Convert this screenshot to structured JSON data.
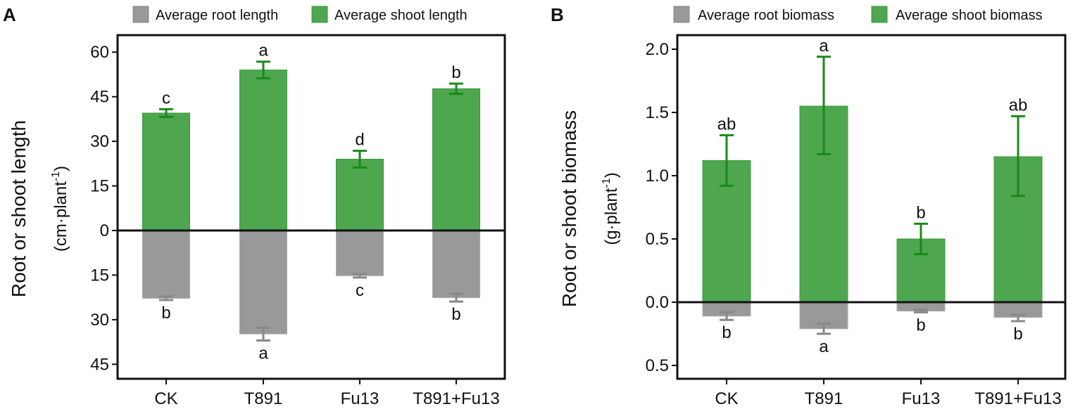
{
  "colors": {
    "root": "#999999",
    "root_err": "#888888",
    "shoot": "#4ea64e",
    "shoot_edge": "#3c9a3c",
    "shoot_err": "#1a8a1a",
    "axis": "#111111"
  },
  "chart_data": [
    {
      "panel_label": "A",
      "type": "bar",
      "title": "",
      "categories": [
        "CK",
        "T891",
        "Fu13",
        "T891+Fu13"
      ],
      "xlabel": "",
      "ylabel": "Root or shoot length",
      "ylabel_unit_prefix": "(cm·plant",
      "ylabel_unit_sup": "-1",
      "ylabel_unit_suffix": ")",
      "ylim": [
        -50,
        63
      ],
      "yticks": [
        60,
        45,
        30,
        15,
        0,
        -15,
        -30,
        -45
      ],
      "ytick_labels": [
        "60",
        "45",
        "30",
        "15",
        "0",
        "15",
        "30",
        "45"
      ],
      "grid": false,
      "legend": {
        "position": "top",
        "entries": [
          "Average root length",
          "Average shoot length"
        ]
      },
      "series": [
        {
          "name": "Average shoot length",
          "values": [
            39.5,
            54.0,
            24.0,
            47.7
          ],
          "err_low": [
            38.2,
            51.2,
            21.2,
            46.0
          ],
          "err_high": [
            40.8,
            56.8,
            26.8,
            49.4
          ],
          "letters": [
            "c",
            "a",
            "d",
            "b"
          ]
        },
        {
          "name": "Average root length",
          "values": [
            22.8,
            34.8,
            15.2,
            22.6
          ],
          "err_low": [
            22.2,
            32.7,
            14.6,
            21.3
          ],
          "err_high": [
            23.4,
            37.0,
            15.8,
            23.9
          ],
          "letters": [
            "b",
            "a",
            "c",
            "b"
          ]
        }
      ]
    },
    {
      "panel_label": "B",
      "type": "bar",
      "title": "",
      "categories": [
        "CK",
        "T891",
        "Fu13",
        "T891+Fu13"
      ],
      "xlabel": "",
      "ylabel": "Root or shoot biomass",
      "ylabel_unit_prefix": "(g·plant",
      "ylabel_unit_sup": "-1",
      "ylabel_unit_suffix": ")",
      "ylim": [
        -0.6,
        2.1
      ],
      "yticks": [
        2.0,
        1.5,
        1.0,
        0.5,
        0.0,
        -0.5
      ],
      "ytick_labels": [
        "2.0",
        "1.5",
        "1.0",
        "0.5",
        "0.0",
        "0.5"
      ],
      "grid": false,
      "legend": {
        "position": "top",
        "entries": [
          "Average root biomass",
          "Average shoot biomass"
        ]
      },
      "series": [
        {
          "name": "Average shoot biomass",
          "values": [
            1.12,
            1.55,
            0.5,
            1.15
          ],
          "err_low": [
            0.92,
            1.17,
            0.38,
            0.84
          ],
          "err_high": [
            1.32,
            1.94,
            0.62,
            1.47
          ],
          "letters": [
            "ab",
            "a",
            "b",
            "ab"
          ]
        },
        {
          "name": "Average root biomass",
          "values": [
            0.11,
            0.21,
            0.07,
            0.12
          ],
          "err_low": [
            0.08,
            0.17,
            0.06,
            0.1
          ],
          "err_high": [
            0.14,
            0.25,
            0.08,
            0.15
          ],
          "letters": [
            "b",
            "a",
            "b",
            "b"
          ]
        }
      ]
    }
  ]
}
